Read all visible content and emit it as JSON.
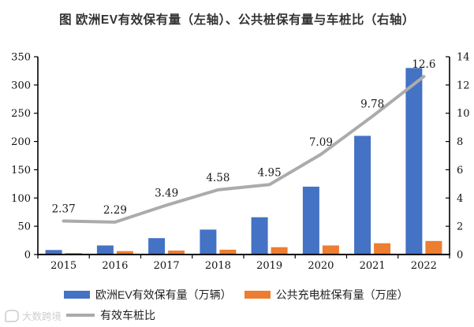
{
  "title": "图 欧洲EV有效保有量（左轴）、公共桩保有量与车桩比（右轴）",
  "watermark": {
    "text": "大数跨境"
  },
  "colors": {
    "ev_bar": "#4472C4",
    "pile_bar": "#ED7D31",
    "ratio_line": "#ABABAB",
    "axis": "#000000",
    "tick_text": "#111111",
    "title_text": "#333333",
    "watermark_text": "#CFCFCF"
  },
  "chart_data": {
    "type": "combo-bar-line",
    "title": "图 欧洲EV有效保有量（左轴）、公共桩保有量与车桩比（右轴）",
    "categories": [
      "2015",
      "2016",
      "2017",
      "2018",
      "2019",
      "2020",
      "2021",
      "2022"
    ],
    "series": [
      {
        "name": "欧洲EV有效保有量（万辆）",
        "type": "bar",
        "axis": "left",
        "color": "#4472C4",
        "values": [
          8,
          16,
          29,
          44,
          66,
          120,
          210,
          330
        ]
      },
      {
        "name": "公共充电桩保有量（万座）",
        "type": "bar",
        "axis": "left",
        "color": "#ED7D31",
        "values": [
          2.5,
          6,
          7,
          8.5,
          13,
          16,
          20,
          24
        ]
      },
      {
        "name": "有效车桩比",
        "type": "line",
        "axis": "right",
        "color": "#ABABAB",
        "values": [
          2.37,
          2.29,
          3.49,
          4.58,
          4.95,
          7.09,
          9.78,
          12.6
        ],
        "point_labels": [
          "2.37",
          "2.29",
          "3.49",
          "4.58",
          "4.95",
          "7.09",
          "9.78",
          "12.6"
        ]
      }
    ],
    "left_axis": {
      "min": 0,
      "max": 350,
      "step": 50,
      "ticks": [
        "0",
        "50",
        "100",
        "150",
        "200",
        "250",
        "300",
        "350"
      ]
    },
    "right_axis": {
      "min": 0,
      "max": 14,
      "step": 2,
      "ticks": [
        "0",
        "2",
        "4",
        "6",
        "8",
        "10",
        "12",
        "14"
      ]
    },
    "grid": false,
    "legend_position": "bottom"
  }
}
